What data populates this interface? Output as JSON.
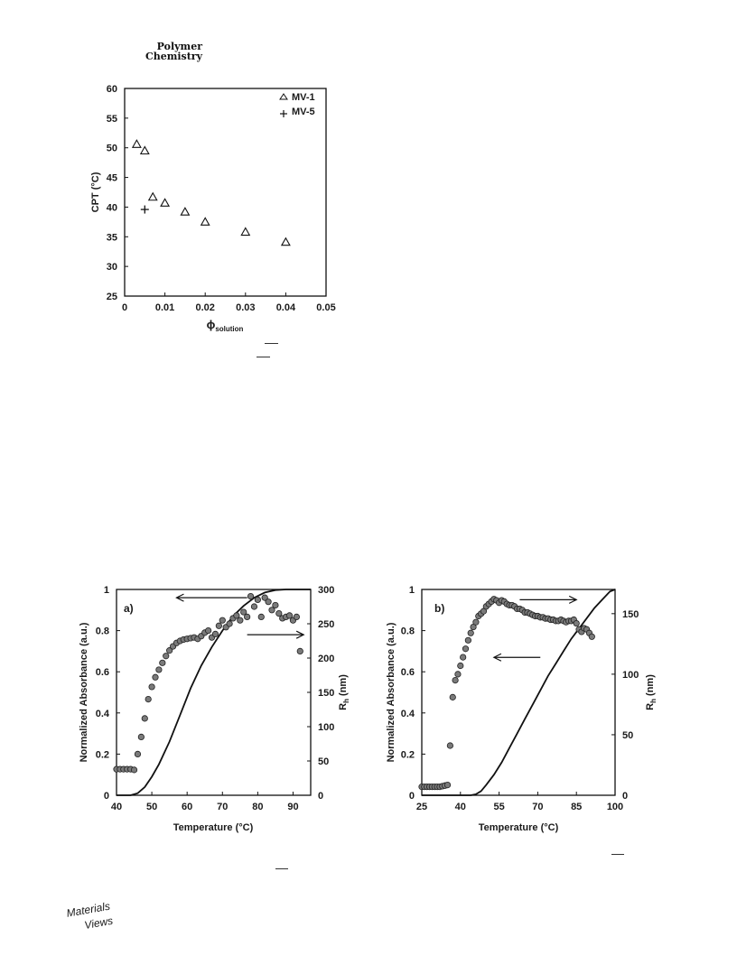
{
  "header": {
    "journal_line1": "Polymer",
    "journal_line2": "Chemistry"
  },
  "logo": {
    "icon": "materials-views-logo",
    "line1": "Materials",
    "line2": "Views"
  },
  "chart_data": [
    {
      "id": "cpt-vs-phi",
      "type": "scatter",
      "title": "",
      "xlabel_main": "ϕ",
      "xlabel_sub": "solution",
      "ylabel": "CPT (°C)",
      "xlim": [
        0,
        0.05
      ],
      "ylim": [
        25,
        60
      ],
      "xticks": [
        0,
        0.01,
        0.02,
        0.03,
        0.04,
        0.05
      ],
      "xtick_labels": [
        "0",
        "0.01",
        "0.02",
        "0.03",
        "0.04",
        "0.05"
      ],
      "yticks": [
        25,
        30,
        35,
        40,
        45,
        50,
        55,
        60
      ],
      "ytick_labels": [
        "25",
        "30",
        "35",
        "40",
        "45",
        "50",
        "55",
        "60"
      ],
      "legend_position": "top-right",
      "series": [
        {
          "name": "MV-1",
          "marker": "triangle",
          "x": [
            0.003,
            0.005,
            0.007,
            0.01,
            0.015,
            0.02,
            0.03,
            0.04
          ],
          "y": [
            50.6,
            49.5,
            41.7,
            40.7,
            39.2,
            37.5,
            35.8,
            34.1
          ]
        },
        {
          "name": "MV-5",
          "marker": "plus",
          "x": [
            0.005
          ],
          "y": [
            39.6
          ]
        }
      ]
    },
    {
      "id": "panel-a",
      "type": "line+scatter",
      "panel_label": "a)",
      "xlabel": "Temperature (°C)",
      "ylabel_left": "Normalized Absorbance (a.u.)",
      "ylabel_right_main": "R",
      "ylabel_right_sub": "h",
      "ylabel_right_unit": " (nm)",
      "xlim": [
        40,
        95
      ],
      "ylim_left": [
        0,
        1
      ],
      "ylim_right": [
        0,
        300
      ],
      "xticks": [
        40,
        50,
        60,
        70,
        80,
        90
      ],
      "xtick_labels": [
        "40",
        "50",
        "60",
        "70",
        "80",
        "90"
      ],
      "yticks_left": [
        0,
        0.2,
        0.4,
        0.6,
        0.8,
        1
      ],
      "ytick_left_labels": [
        "0",
        "0.2",
        "0.4",
        "0.6",
        "0.8",
        "1"
      ],
      "yticks_right": [
        0,
        50,
        100,
        150,
        200,
        250,
        300
      ],
      "ytick_right_labels": [
        "0",
        "50",
        "100",
        "150",
        "200",
        "250",
        "300"
      ],
      "absorbance_curve": {
        "axis": "left",
        "x": [
          40,
          44,
          46,
          48,
          50,
          52,
          55,
          58,
          61,
          64,
          67,
          70,
          73,
          76,
          79,
          82,
          85,
          88,
          91,
          95
        ],
        "y": [
          0,
          0,
          0.01,
          0.04,
          0.09,
          0.15,
          0.26,
          0.39,
          0.52,
          0.63,
          0.72,
          0.8,
          0.87,
          0.92,
          0.96,
          0.985,
          0.997,
          1,
          1,
          1
        ]
      },
      "rh_points": {
        "axis": "right",
        "x": [
          40,
          41,
          42,
          43,
          44,
          45,
          46,
          47,
          48,
          49,
          50,
          51,
          52,
          53,
          54,
          55,
          56,
          57,
          58,
          59,
          60,
          61,
          62,
          63,
          64,
          65,
          66,
          67,
          68,
          69,
          70,
          71,
          72,
          73,
          74,
          75,
          76,
          77,
          78,
          79,
          80,
          81,
          82,
          83,
          84,
          85,
          86,
          87,
          88,
          89,
          90,
          91,
          92
        ],
        "y": [
          38,
          38,
          38,
          38,
          38,
          37,
          60,
          85,
          112,
          140,
          158,
          172,
          183,
          193,
          203,
          211,
          217,
          222,
          225,
          227,
          228,
          229,
          230,
          228,
          232,
          237,
          240,
          230,
          235,
          247,
          255,
          245,
          250,
          258,
          262,
          255,
          267,
          260,
          290,
          275,
          285,
          260,
          288,
          282,
          270,
          277,
          265,
          258,
          260,
          262,
          255,
          260,
          210
        ]
      },
      "arrows": [
        {
          "direction": "left",
          "x_from": 77,
          "x_to": 57,
          "y": 0.96
        },
        {
          "direction": "right",
          "x_from": 77,
          "x_to": 93,
          "y": 0.78
        }
      ]
    },
    {
      "id": "panel-b",
      "type": "line+scatter",
      "panel_label": "b)",
      "xlabel": "Temperature (°C)",
      "ylabel_left": "Normalized Absorbance (a.u.)",
      "ylabel_right_main": "R",
      "ylabel_right_sub": "h",
      "ylabel_right_unit": " (nm)",
      "xlim": [
        25,
        100
      ],
      "ylim_left": [
        0,
        1
      ],
      "ylim_right": [
        0,
        170
      ],
      "xticks": [
        25,
        40,
        55,
        70,
        85,
        100
      ],
      "xtick_labels": [
        "25",
        "40",
        "55",
        "70",
        "85",
        "100"
      ],
      "yticks_left": [
        0,
        0.2,
        0.4,
        0.6,
        0.8,
        1
      ],
      "ytick_left_labels": [
        "0",
        "0.2",
        "0.4",
        "0.6",
        "0.8",
        "1"
      ],
      "yticks_right": [
        0,
        50,
        100,
        150
      ],
      "ytick_right_labels": [
        "0",
        "50",
        "100",
        "150"
      ],
      "absorbance_curve": {
        "axis": "left",
        "x": [
          25,
          44,
          46,
          48,
          50,
          53,
          56,
          59,
          62,
          65,
          68,
          71,
          74,
          77,
          80,
          83,
          86,
          89,
          92,
          95,
          98,
          100
        ],
        "y": [
          0,
          0,
          0.005,
          0.02,
          0.05,
          0.1,
          0.16,
          0.23,
          0.3,
          0.37,
          0.44,
          0.51,
          0.58,
          0.64,
          0.7,
          0.76,
          0.81,
          0.86,
          0.91,
          0.95,
          0.99,
          1.0
        ]
      },
      "rh_points": {
        "axis": "right",
        "x": [
          25,
          26,
          27,
          28,
          29,
          30,
          31,
          32,
          33,
          34,
          35,
          36,
          37,
          38,
          39,
          40,
          41,
          42,
          43,
          44,
          45,
          46,
          47,
          48,
          49,
          50,
          51,
          52,
          53,
          54,
          55,
          56,
          57,
          58,
          59,
          60,
          61,
          62,
          63,
          64,
          65,
          66,
          67,
          68,
          69,
          70,
          71,
          72,
          73,
          74,
          75,
          76,
          77,
          78,
          79,
          80,
          81,
          82,
          83,
          84,
          85,
          86,
          87,
          88,
          89,
          90,
          91
        ],
        "y": [
          7,
          7,
          7,
          7,
          7,
          7,
          7,
          7,
          7.5,
          8,
          8.5,
          41,
          81,
          95,
          100,
          107,
          114,
          121,
          128,
          134,
          139,
          143,
          148,
          150,
          152,
          156,
          158,
          160,
          162,
          161,
          159,
          161,
          160,
          158,
          157,
          157,
          156,
          154,
          154,
          153,
          151,
          151,
          150,
          149,
          148,
          148,
          147,
          147,
          146,
          146,
          145,
          145,
          144,
          144,
          145,
          144,
          143,
          144,
          144,
          145,
          142,
          137,
          135,
          138,
          137,
          134,
          131
        ]
      },
      "arrows": [
        {
          "direction": "right",
          "x_from": 63,
          "x_to": 85,
          "y": 0.95
        },
        {
          "direction": "left",
          "x_from": 71,
          "x_to": 53,
          "y": 0.67
        }
      ]
    }
  ]
}
